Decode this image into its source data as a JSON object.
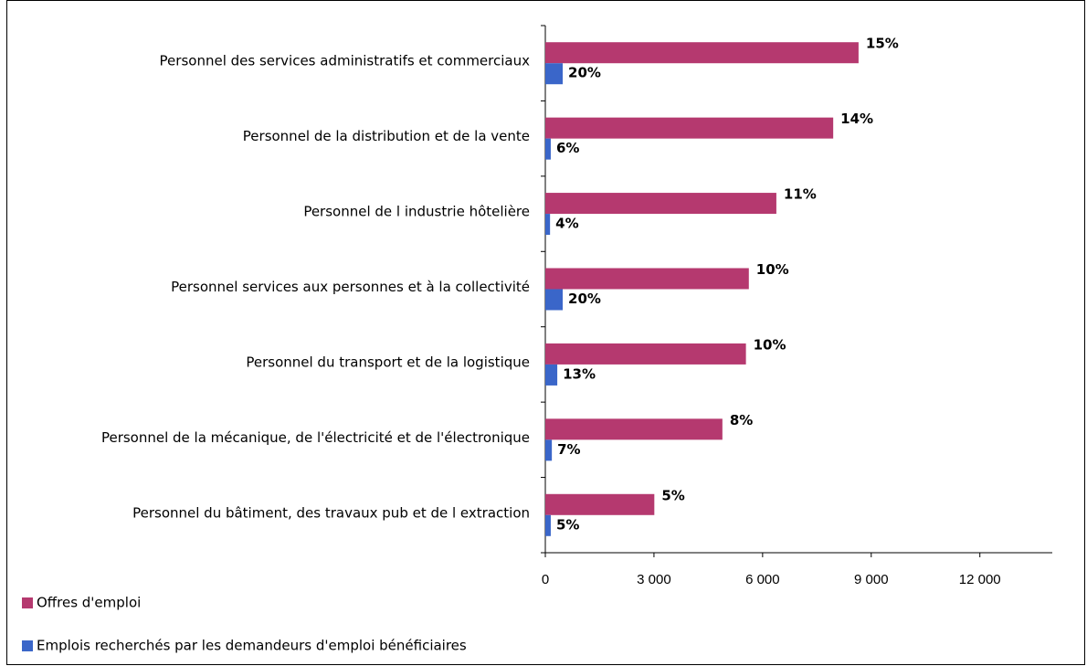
{
  "chart_data": {
    "type": "bar",
    "orientation": "horizontal",
    "categories": [
      "Personnel des services administratifs et commerciaux",
      "Personnel de la distribution et de la vente",
      "Personnel de l industrie hôtelière",
      "Personnel services aux personnes et à la collectivité",
      "Personnel du transport et de la logistique",
      "Personnel de la mécanique, de l'électricité et de l'électronique",
      "Personnel du bâtiment, des travaux pub et de l extraction"
    ],
    "series": [
      {
        "name": "Offres d'emploi",
        "color": "#b5396f",
        "values": [
          8650,
          7950,
          6380,
          5620,
          5540,
          4890,
          3010
        ],
        "value_labels": [
          "15%",
          "14%",
          "11%",
          "10%",
          "10%",
          "8%",
          "5%"
        ]
      },
      {
        "name": "Emplois recherchés par les demandeurs d'emploi bénéficiaires",
        "color": "#3a66c9",
        "values": [
          480,
          150,
          130,
          480,
          330,
          180,
          150
        ],
        "value_labels": [
          "20%",
          "6%",
          "4%",
          "20%",
          "13%",
          "7%",
          "5%"
        ]
      }
    ],
    "xlim": [
      0,
      14000
    ],
    "xticks": [
      0,
      {
        "value": 3000,
        "label": "3 000"
      },
      {
        "value": 6000,
        "label": "6 000"
      },
      {
        "value": 9000,
        "label": "9 000"
      },
      {
        "value": 12000,
        "label": "12 000"
      }
    ]
  }
}
